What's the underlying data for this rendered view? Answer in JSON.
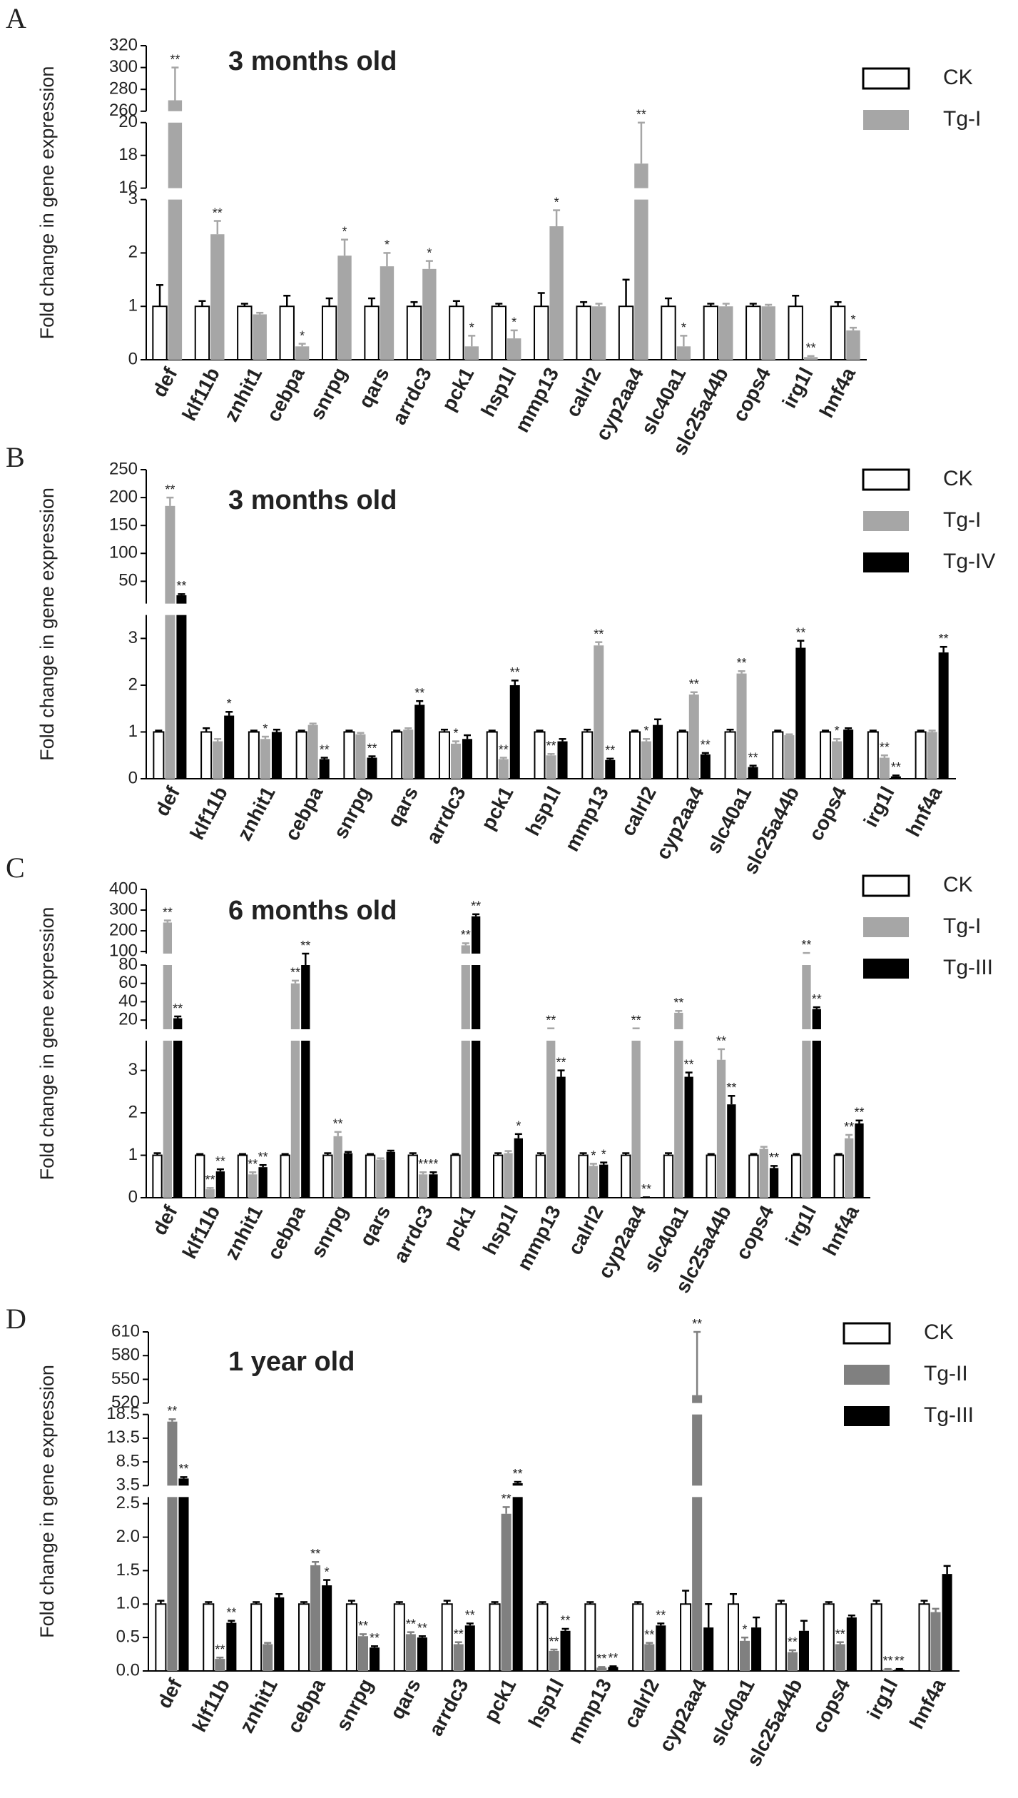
{
  "chart_data": [
    {
      "type": "bar",
      "label": "A",
      "title": "3 months old",
      "y_label": "Fold change in gene expression",
      "legend": "upper right",
      "categories": [
        "def",
        "klf11b",
        "znhit1",
        "cebpa",
        "snrpg",
        "qars",
        "arrdc3",
        "pck1",
        "hsp1l",
        "mmp13",
        "calrl2",
        "cyp2aa4",
        "slc40a1",
        "slc25a44b",
        "cops4",
        "irg1l",
        "hnf4a"
      ],
      "y_segments": [
        {
          "ylim": [
            0,
            3
          ],
          "yticks": [
            0,
            1,
            2,
            3
          ]
        },
        {
          "ylim": [
            16,
            20
          ],
          "yticks": [
            16,
            18,
            20
          ]
        },
        {
          "ylim": [
            260,
            320
          ],
          "yticks": [
            260,
            280,
            300,
            320
          ]
        }
      ],
      "series": [
        {
          "name": "CK",
          "color": "#ffffff",
          "values": [
            1,
            1,
            1,
            1,
            1,
            1,
            1,
            1,
            1,
            1,
            1,
            1,
            1,
            1,
            1,
            1,
            1
          ],
          "errors": [
            0.4,
            0.1,
            0.05,
            0.2,
            0.15,
            0.15,
            0.08,
            0.1,
            0.05,
            0.25,
            0.08,
            0.5,
            0.15,
            0.05,
            0.05,
            0.2,
            0.08
          ]
        },
        {
          "name": "Tg-I",
          "color": "#a6a6a6",
          "values": [
            270,
            2.35,
            0.85,
            0.25,
            1.95,
            1.75,
            1.7,
            0.25,
            0.4,
            2.5,
            1.0,
            17.5,
            0.25,
            1.0,
            1.0,
            0.05,
            0.55
          ],
          "errors": [
            30,
            0.25,
            0.03,
            0.05,
            0.3,
            0.25,
            0.15,
            0.2,
            0.15,
            0.3,
            0.05,
            2.5,
            0.2,
            0.05,
            0.03,
            0.02,
            0.05
          ],
          "annotations": [
            "**",
            "**",
            null,
            "*",
            "*",
            "*",
            "*",
            "*",
            "*",
            "*",
            null,
            "**",
            "*",
            null,
            null,
            "**",
            "*"
          ]
        }
      ]
    },
    {
      "type": "bar",
      "label": "B",
      "title": "3 months old",
      "y_label": "Fold change in gene expression",
      "legend": "upper right",
      "categories": [
        "def",
        "klf11b",
        "znhit1",
        "cebpa",
        "snrpg",
        "qars",
        "arrdc3",
        "pck1",
        "hsp1l",
        "mmp13",
        "calrl2",
        "cyp2aa4",
        "slc40a1",
        "slc25a44b",
        "cops4",
        "irg1l",
        "hnf4a"
      ],
      "y_segments": [
        {
          "ylim": [
            0,
            3.5
          ],
          "yticks": [
            0,
            1,
            2,
            3
          ]
        },
        {
          "ylim": [
            10,
            250
          ],
          "yticks": [
            50,
            100,
            150,
            200,
            250
          ]
        }
      ],
      "series": [
        {
          "name": "CK",
          "color": "#ffffff",
          "values": [
            1,
            1,
            1,
            1,
            1,
            1,
            1,
            1,
            1,
            1,
            1,
            1,
            1,
            1,
            1,
            1,
            1
          ],
          "errors": [
            0.03,
            0.08,
            0.03,
            0.03,
            0.03,
            0.03,
            0.05,
            0.03,
            0.03,
            0.05,
            0.03,
            0.03,
            0.05,
            0.03,
            0.03,
            0.03,
            0.03
          ]
        },
        {
          "name": "Tg-I",
          "color": "#a6a6a6",
          "values": [
            185,
            0.8,
            0.85,
            1.15,
            0.95,
            1.05,
            0.75,
            0.42,
            0.5,
            2.85,
            0.8,
            1.8,
            2.25,
            0.93,
            0.8,
            0.45,
            1.0
          ],
          "errors": [
            15,
            0.05,
            0.05,
            0.03,
            0.03,
            0.03,
            0.05,
            0.03,
            0.03,
            0.07,
            0.05,
            0.05,
            0.05,
            0.02,
            0.05,
            0.05,
            0.03
          ],
          "annotations": [
            "**",
            null,
            "*",
            null,
            null,
            null,
            "*",
            "**",
            "**",
            "**",
            "*",
            "**",
            "**",
            null,
            "*",
            "**",
            null
          ]
        },
        {
          "name": "Tg-IV",
          "color": "#000000",
          "values": [
            25,
            1.35,
            1.0,
            0.42,
            0.45,
            1.58,
            0.85,
            2.0,
            0.8,
            0.4,
            1.15,
            0.52,
            0.25,
            2.8,
            1.05,
            0.05,
            2.7
          ],
          "errors": [
            2,
            0.08,
            0.05,
            0.03,
            0.03,
            0.08,
            0.08,
            0.1,
            0.05,
            0.03,
            0.12,
            0.03,
            0.03,
            0.15,
            0.03,
            0.02,
            0.12
          ],
          "annotations": [
            "**",
            "*",
            null,
            "**",
            "**",
            "**",
            null,
            "**",
            null,
            "**",
            null,
            "**",
            "**",
            "**",
            null,
            "**",
            "**"
          ]
        }
      ]
    },
    {
      "type": "bar",
      "label": "C",
      "title": "6 months old",
      "y_label": "Fold change in gene expression",
      "legend": "upper right",
      "categories": [
        "def",
        "klf11b",
        "znhit1",
        "cebpa",
        "snrpg",
        "qars",
        "arrdc3",
        "pck1",
        "hsp1l",
        "mmp13",
        "calrl2",
        "cyp2aa4",
        "slc40a1",
        "slc25a44b",
        "cops4",
        "irg1l",
        "hnf4a"
      ],
      "y_segments": [
        {
          "ylim": [
            0,
            3.7
          ],
          "yticks": [
            0,
            1,
            2,
            3
          ]
        },
        {
          "ylim": [
            10,
            80
          ],
          "yticks": [
            20,
            40,
            60,
            80
          ]
        },
        {
          "ylim": [
            90,
            400
          ],
          "yticks": [
            100,
            200,
            300,
            400
          ]
        }
      ],
      "series": [
        {
          "name": "CK",
          "color": "#ffffff",
          "values": [
            1,
            1,
            1,
            1,
            1,
            1,
            1,
            1,
            1,
            1,
            1,
            1,
            1,
            1,
            1,
            1,
            1
          ],
          "errors": [
            0.05,
            0.03,
            0.03,
            0.03,
            0.05,
            0.03,
            0.05,
            0.03,
            0.05,
            0.05,
            0.05,
            0.05,
            0.05,
            0.03,
            0.03,
            0.03,
            0.03
          ]
        },
        {
          "name": "Tg-I",
          "color": "#a6a6a6",
          "values": [
            240,
            0.2,
            0.55,
            60,
            1.45,
            0.9,
            0.55,
            130,
            1.05,
            10,
            0.75,
            10,
            28,
            3.25,
            1.15,
            90,
            1.4
          ],
          "errors": [
            10,
            0.03,
            0.05,
            3,
            0.1,
            0.03,
            0.05,
            10,
            0.05,
            1,
            0.05,
            1,
            2,
            0.25,
            0.05,
            3,
            0.08
          ],
          "annotations": [
            "**",
            "**",
            "**",
            "**",
            "**",
            null,
            "**",
            "**",
            null,
            "**",
            "*",
            "**",
            "**",
            "**",
            null,
            "**",
            "**"
          ]
        },
        {
          "name": "Tg-III",
          "color": "#000000",
          "values": [
            22,
            0.62,
            0.72,
            85,
            1.05,
            1.08,
            0.55,
            270,
            1.4,
            2.85,
            0.78,
            0.01,
            2.85,
            2.2,
            0.7,
            32,
            1.75
          ],
          "errors": [
            2,
            0.05,
            0.05,
            5,
            0.03,
            0.03,
            0.05,
            10,
            0.1,
            0.15,
            0.05,
            0,
            0.1,
            0.2,
            0.05,
            2,
            0.07
          ],
          "annotations": [
            "**",
            "**",
            "**",
            "**",
            null,
            null,
            "**",
            "**",
            "*",
            "**",
            "*",
            "**",
            "**",
            "**",
            "**",
            "**",
            "**"
          ]
        }
      ]
    },
    {
      "type": "bar",
      "label": "D",
      "title": "1 year old",
      "y_label": "Fold change in gene expression",
      "legend": "upper right",
      "categories": [
        "def",
        "klf11b",
        "znhit1",
        "cebpa",
        "snrpg",
        "qars",
        "arrdc3",
        "pck1",
        "hsp1l",
        "mmp13",
        "calrl2",
        "cyp2aa4",
        "slc40a1",
        "slc25a44b",
        "cops4",
        "irg1l",
        "hnf4a"
      ],
      "y_segments": [
        {
          "ylim": [
            0,
            2.6
          ],
          "yticks": [
            {
              "value": 0,
              "label": "0.0"
            },
            0.5,
            {
              "value": 1,
              "label": "1.0"
            },
            1.5,
            {
              "value": 2,
              "label": "2.0"
            },
            2.5
          ]
        },
        {
          "ylim": [
            3.5,
            18.5
          ],
          "yticks": [
            3.5,
            8.5,
            13.5,
            18.5
          ]
        },
        {
          "ylim": [
            520,
            610
          ],
          "yticks": [
            520,
            550,
            580,
            610
          ]
        }
      ],
      "series": [
        {
          "name": "CK",
          "color": "#ffffff",
          "values": [
            1,
            1,
            1,
            1,
            1,
            1,
            1,
            1,
            1,
            1,
            1,
            1,
            1,
            1,
            1,
            1,
            1
          ],
          "errors": [
            0.05,
            0.03,
            0.03,
            0.03,
            0.05,
            0.03,
            0.05,
            0.03,
            0.03,
            0.03,
            0.03,
            0.2,
            0.15,
            0.05,
            0.03,
            0.05,
            0.05
          ]
        },
        {
          "name": "Tg-II",
          "color": "#808080",
          "values": [
            17,
            0.18,
            0.4,
            1.58,
            0.52,
            0.55,
            0.4,
            2.35,
            0.3,
            0.05,
            0.4,
            530,
            0.45,
            0.28,
            0.4,
            0.02,
            0.88
          ],
          "errors": [
            0.5,
            0.02,
            0.02,
            0.05,
            0.03,
            0.03,
            0.03,
            0.1,
            0.02,
            0.01,
            0.02,
            80,
            0.05,
            0.03,
            0.03,
            0.01,
            0.05
          ],
          "annotations": [
            "**",
            "**",
            null,
            "**",
            "**",
            "**",
            "**",
            "**",
            "**",
            "**",
            "**",
            "**",
            "*",
            "**",
            "**",
            "**",
            null
          ]
        },
        {
          "name": "Tg-III",
          "color": "#000000",
          "values": [
            5,
            0.72,
            1.1,
            1.28,
            0.35,
            0.5,
            0.68,
            4,
            0.6,
            0.06,
            0.68,
            0.65,
            0.65,
            0.6,
            0.8,
            0.02,
            1.45
          ],
          "errors": [
            0.3,
            0.03,
            0.05,
            0.08,
            0.02,
            0.02,
            0.03,
            0.3,
            0.03,
            0.01,
            0.03,
            0.35,
            0.15,
            0.15,
            0.03,
            0.01,
            0.12
          ],
          "annotations": [
            "**",
            "**",
            null,
            "*",
            "**",
            "**",
            "**",
            "**",
            "**",
            "**",
            "**",
            null,
            null,
            null,
            null,
            "**",
            null
          ]
        }
      ]
    }
  ]
}
